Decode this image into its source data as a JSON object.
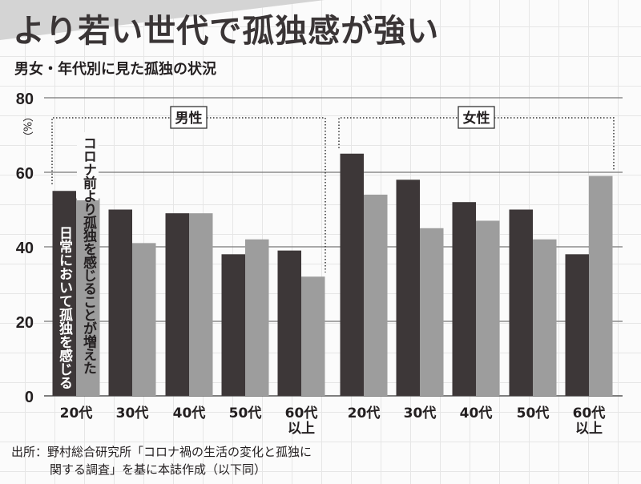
{
  "title": "より若い世代で孤独感が強い",
  "subtitle": "男女・年代別に見た孤独の状況",
  "source": {
    "line1": "出所：野村総合研究所「コロナ禍の生活の変化と孤独に",
    "line2": "関する調査」を基に本誌作成（以下同）"
  },
  "chart_data": {
    "type": "bar",
    "ylabel": "（%）",
    "ylim": [
      0,
      80
    ],
    "yticks": [
      "0",
      "20",
      "40",
      "60",
      "80"
    ],
    "grid": true,
    "groups": [
      {
        "name": "男性",
        "categories": [
          "20代",
          "30代",
          "40代",
          "50代",
          "60代\n以上"
        ]
      },
      {
        "name": "女性",
        "categories": [
          "20代",
          "30代",
          "40代",
          "50代",
          "60代\n以上"
        ]
      }
    ],
    "series": [
      {
        "name": "日常において孤独を感じる",
        "color": "#3d3738",
        "values": [
          55,
          50,
          49,
          38,
          39,
          65,
          58,
          52,
          50,
          38
        ]
      },
      {
        "name": "コロナ前より孤独を感じることが増えた",
        "color": "#9d9d9d",
        "values": [
          53,
          41,
          49,
          42,
          32,
          54,
          45,
          47,
          42,
          59
        ]
      }
    ]
  }
}
